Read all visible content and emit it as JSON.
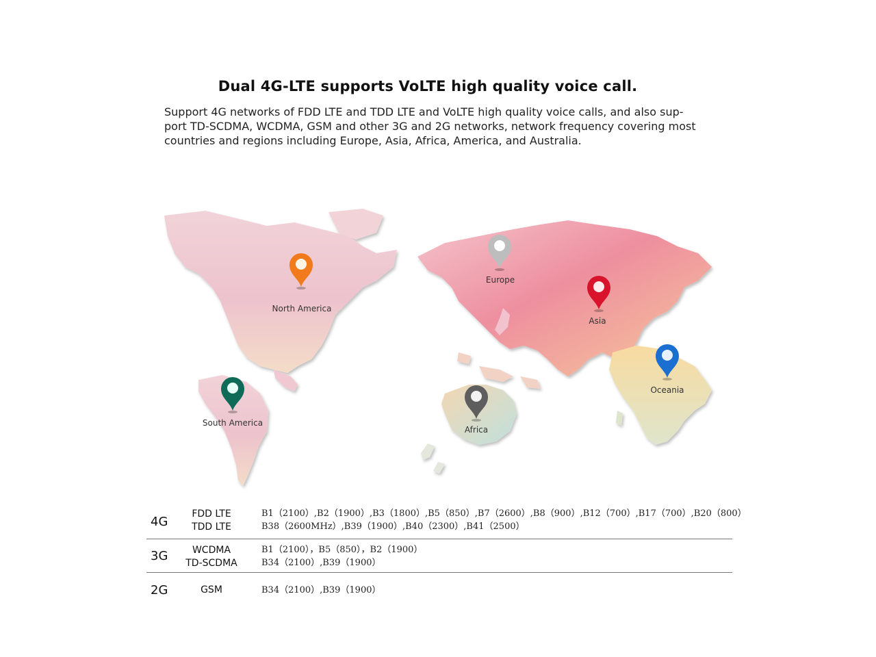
{
  "headline": "Dual 4G-LTE supports VoLTE high quality voice call.",
  "description": {
    "line1": "Support 4G networks of FDD LTE and TDD LTE and VoLTE high quality voice calls, and also sup-",
    "line2": "port TD-SCDMA, WCDMA, GSM and other 3G and 2G networks, network frequency covering most",
    "line3": "countries and regions including Europe, Asia, Africa, America, and Australia."
  },
  "map": {
    "pins": [
      {
        "label": "North America",
        "color": "#f07a1c",
        "icon": "location-pin-icon"
      },
      {
        "label": "Europe",
        "color": "#bdbdbd",
        "icon": "location-pin-icon"
      },
      {
        "label": "Asia",
        "color": "#d8132b",
        "icon": "location-pin-icon"
      },
      {
        "label": "Oceania",
        "color": "#1a6fd0",
        "icon": "location-pin-icon"
      },
      {
        "label": "South America",
        "color": "#0d6b57",
        "icon": "location-pin-icon"
      },
      {
        "label": "Africa",
        "color": "#5e5e5e",
        "icon": "location-pin-icon"
      }
    ]
  },
  "bands_table": {
    "rows": [
      {
        "generation": "4G",
        "tech1": "FDD LTE",
        "tech2": "TDD LTE",
        "bands1": "B1（2100）,B2（1900）,B3（1800）,B5（850）,B7（2600）,B8（900）,B12（700）,B17（700）,B20（800）",
        "bands2": "B38（2600MHz）,B39（1900）,B40（2300）,B41（2500）"
      },
      {
        "generation": "3G",
        "tech1": "WCDMA",
        "tech2": "TD-SCDMA",
        "bands1": "B1（2100），B5（850），B2（1900）",
        "bands2": "B34（2100）,B39（1900）"
      },
      {
        "generation": "2G",
        "tech1": "GSM",
        "bands1": "B34（2100）,B39（1900）"
      }
    ]
  }
}
